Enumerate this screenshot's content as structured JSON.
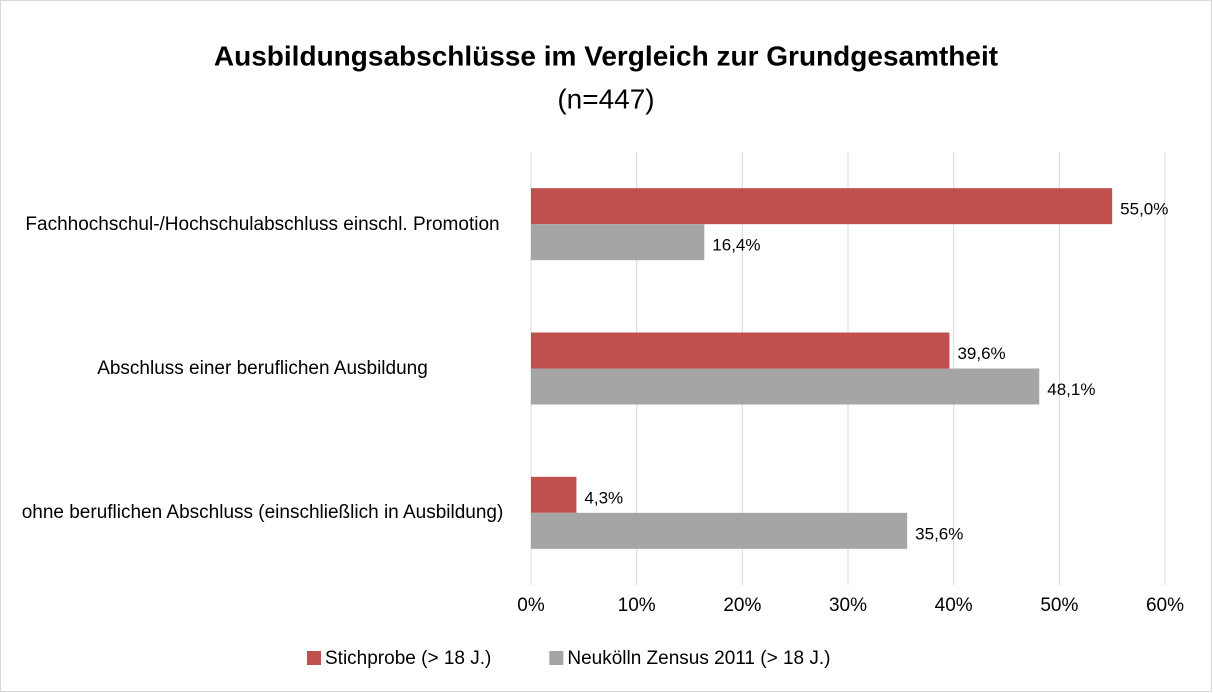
{
  "chart_data": {
    "type": "bar",
    "orientation": "horizontal",
    "title": "Ausbildungsabschlüsse im Vergleich zur Grundgesamtheit",
    "subtitle": "(n=447)",
    "categories": [
      "Fachhochschul-/Hochschulabschluss einschl. Promotion",
      "Abschluss einer beruflichen Ausbildung",
      "ohne beruflichen Abschluss (einschließlich in Ausbildung)"
    ],
    "series": [
      {
        "name": "Stichprobe (> 18 J.)",
        "color": "#c0504d",
        "values": [
          55.0,
          39.6,
          4.3
        ],
        "value_labels": [
          "55,0%",
          "39,6%",
          "4,3%"
        ]
      },
      {
        "name": "Neukölln Zensus 2011 (> 18 J.)",
        "color": "#a5a5a5",
        "values": [
          16.4,
          48.1,
          35.6
        ],
        "value_labels": [
          "16,4%",
          "48,1%",
          "35,6%"
        ]
      }
    ],
    "xlim": [
      0,
      60
    ],
    "xticks": [
      {
        "value": 0,
        "label": "0%"
      },
      {
        "value": 10,
        "label": "10%"
      },
      {
        "value": 20,
        "label": "20%"
      },
      {
        "value": 30,
        "label": "30%"
      },
      {
        "value": 40,
        "label": "40%"
      },
      {
        "value": 50,
        "label": "50%"
      },
      {
        "value": 60,
        "label": "60%"
      }
    ],
    "grid": true,
    "legend": "bottom"
  }
}
